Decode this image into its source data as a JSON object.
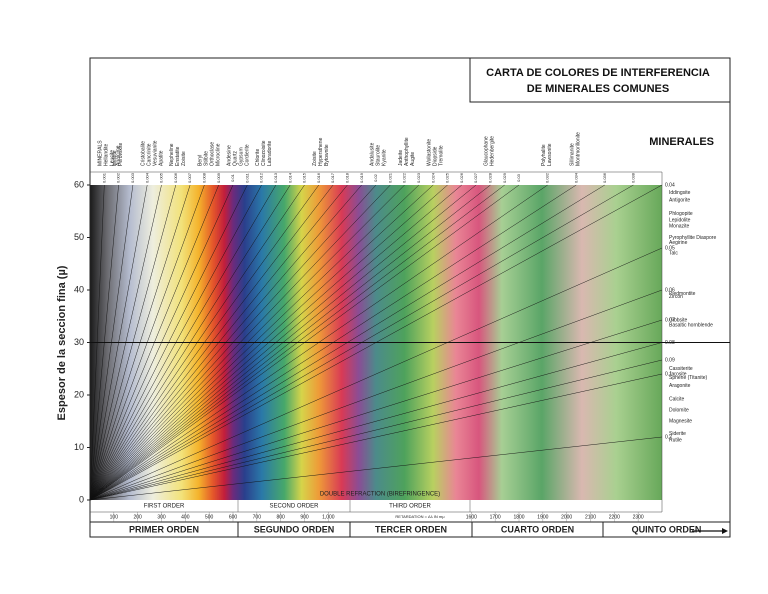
{
  "chart_data": {
    "type": "michel-levy",
    "title_lines": [
      "CARTA DE COLORES DE INTERFERENCIA",
      "DE MINERALES COMUNES"
    ],
    "minerals_heading": "MINERALES",
    "ylabel": "Espesor de la seccion fina (µ)",
    "ylim": [
      0,
      60
    ],
    "yticks": [
      0,
      10,
      20,
      30,
      40,
      50,
      60
    ],
    "xlim": [
      0,
      2400
    ],
    "xticks": [
      100,
      200,
      300,
      400,
      500,
      600,
      700,
      800,
      900,
      {
        "value": 1000,
        "label": "1,000"
      },
      1600,
      1700,
      1800,
      1900,
      2000,
      2100,
      2200,
      2300
    ],
    "xlabel": "RETARDATION = Δλ IN mμ",
    "birefringence_caption": "DOUBLE REFRACTION (BIREFRINGENCE)",
    "orders_en": [
      "FIRST ORDER",
      "SECOND ORDER",
      "THIRD ORDER"
    ],
    "orders_es": [
      "PRIMER ORDEN",
      "SEGUNDO ORDEN",
      "TERCER ORDEN",
      "CUARTO ORDEN",
      "QUINTO ORDEN"
    ],
    "birefringence_lines": [
      0.001,
      0.002,
      0.003,
      0.004,
      0.005,
      0.006,
      0.007,
      0.008,
      0.009,
      0.01,
      0.011,
      0.012,
      0.013,
      0.014,
      0.015,
      0.016,
      0.017,
      0.018,
      0.019,
      0.02,
      0.021,
      0.022,
      0.023,
      0.024,
      0.025,
      0.026,
      0.027,
      0.028,
      0.029,
      0.03,
      0.032,
      0.034,
      0.036,
      0.038,
      0.04,
      0.05,
      0.06,
      0.07,
      0.08,
      0.09,
      0.1,
      0.2
    ],
    "right_labels": [
      0.04,
      0.05,
      0.06,
      0.07,
      0.08,
      0.09,
      0.1,
      0.2
    ],
    "minerals_top": [
      {
        "biref": 0.001,
        "names": [
          "MINERALS",
          "Hellandite",
          "Leucite",
          "Analcime"
        ]
      },
      {
        "biref": 0.002,
        "names": [
          "Melilite",
          "Perovskite"
        ]
      },
      {
        "biref": 0.004,
        "names": [
          "Cristobalite",
          "Cancrinite",
          "Vesuvianite",
          "Apatite"
        ]
      },
      {
        "biref": 0.006,
        "names": [
          "Nepheline",
          "Enstatite",
          "Zoisite"
        ]
      },
      {
        "biref": 0.008,
        "names": [
          "Beryl",
          "Stilbite",
          "Orthoclase",
          "Microcline"
        ]
      },
      {
        "biref": 0.01,
        "names": [
          "Andesine",
          "Quartz",
          "Gypsum",
          "Cordierite"
        ]
      },
      {
        "biref": 0.012,
        "names": [
          "Chlorite",
          "Clinozoisite",
          "Labradorite"
        ]
      },
      {
        "biref": 0.016,
        "names": [
          "Zoisite",
          "Hypersthene",
          "Bytownite"
        ]
      },
      {
        "biref": 0.02,
        "names": [
          "Andalusite",
          "Staurolite",
          "Kyanite"
        ]
      },
      {
        "biref": 0.022,
        "names": [
          "Jadeite",
          "Anthophyllite",
          "Augite"
        ]
      },
      {
        "biref": 0.024,
        "names": [
          "Wollastonite",
          "Diopside",
          "Tremolite"
        ]
      },
      {
        "biref": 0.028,
        "names": [
          "Glaucophane",
          "Hedenbergite"
        ]
      },
      {
        "biref": 0.032,
        "names": [
          "Polyhalite",
          "Lawsonite"
        ]
      },
      {
        "biref": 0.034,
        "names": [
          "Sillimanite",
          "Montmorillonite"
        ]
      }
    ],
    "minerals_right": [
      {
        "biref": 0.041,
        "name": "Iddingsite"
      },
      {
        "biref": 0.042,
        "name": "Antigorite"
      },
      {
        "biref": 0.044,
        "name": "Phlogopite"
      },
      {
        "biref": 0.045,
        "name": "Lepidolite"
      },
      {
        "biref": 0.046,
        "name": "Monazite"
      },
      {
        "biref": 0.048,
        "name": "Pyrophyllite Diaspore"
      },
      {
        "biref": 0.049,
        "name": "Aegirine"
      },
      {
        "biref": 0.051,
        "name": "Talc"
      },
      {
        "biref": 0.061,
        "name": "Piedmontite"
      },
      {
        "biref": 0.062,
        "name": "Zircon"
      },
      {
        "biref": 0.07,
        "name": "Gibbsite"
      },
      {
        "biref": 0.072,
        "name": "Basaltic hornblende"
      },
      {
        "biref": 0.096,
        "name": "Cassiterite"
      },
      {
        "biref": 0.1,
        "name": "Jarosite"
      },
      {
        "biref": 0.103,
        "name": "Sphene (Titanite)"
      },
      {
        "biref": 0.11,
        "name": "Aragonite"
      },
      {
        "biref": 0.125,
        "name": "Calcite"
      },
      {
        "biref": 0.14,
        "name": "Dolomite"
      },
      {
        "biref": 0.16,
        "name": "Magnesite"
      },
      {
        "biref": 0.19,
        "name": "Siderite"
      },
      {
        "biref": 0.21,
        "name": "Rutile"
      }
    ]
  }
}
